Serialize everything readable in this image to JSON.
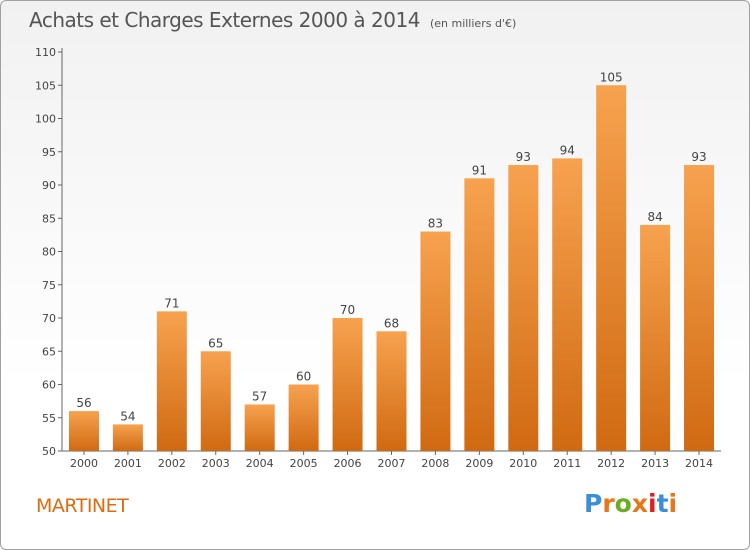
{
  "header": {
    "title": "Achats et Charges Externes 2000 à 2014",
    "subtitle": "(en milliers d'€)"
  },
  "footer": {
    "commune": "MARTINET",
    "brand": "Proxiti"
  },
  "colors": {
    "bar_light": "#f7a24f",
    "bar_dark": "#d06a12",
    "title": "#555555",
    "commune": "#e06a10",
    "brand_letters": [
      "#3a8fd6",
      "#e8771a",
      "#6aad1f",
      "#e8771a",
      "#e02020",
      "#3a8fd6",
      "#e8771a"
    ]
  },
  "chart_data": {
    "type": "bar",
    "title": "Achats et Charges Externes 2000 à 2014",
    "subtitle": "(en milliers d'€)",
    "categories": [
      "2000",
      "2001",
      "2002",
      "2003",
      "2004",
      "2005",
      "2006",
      "2007",
      "2008",
      "2009",
      "2010",
      "2011",
      "2012",
      "2013",
      "2014"
    ],
    "values": [
      56,
      54,
      71,
      65,
      57,
      60,
      70,
      68,
      83,
      91,
      93,
      94,
      105,
      84,
      93
    ],
    "ylim": [
      50,
      110
    ],
    "yticks": [
      50,
      55,
      60,
      65,
      70,
      75,
      80,
      85,
      90,
      95,
      100,
      105,
      110
    ],
    "grid": false,
    "data_labels": true
  }
}
